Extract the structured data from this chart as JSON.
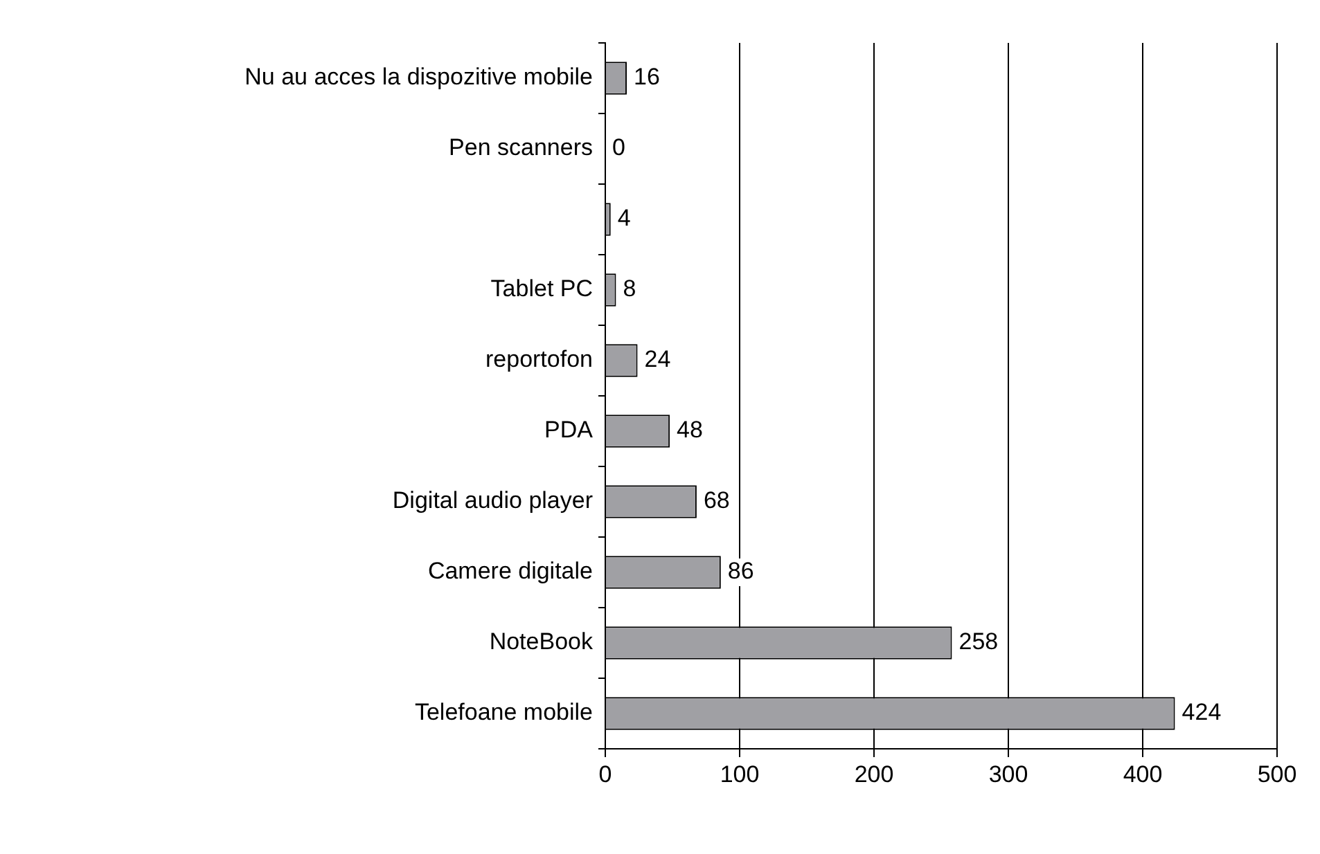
{
  "chart_data": {
    "type": "bar",
    "orientation": "horizontal",
    "categories": [
      "Nu au acces la dispozitive mobile",
      "Pen scanners",
      null,
      "Tablet PC",
      "reportofon",
      "PDA",
      "Digital audio player",
      "Camere digitale",
      "NoteBook",
      "Telefoane mobile"
    ],
    "values": [
      16,
      0,
      4,
      8,
      24,
      48,
      68,
      86,
      258,
      424
    ],
    "color": "#a0a0a4",
    "xlim": [
      0,
      500
    ],
    "xticks": [
      0,
      100,
      200,
      300,
      400,
      500
    ],
    "grid": "x",
    "data_labels": true
  }
}
